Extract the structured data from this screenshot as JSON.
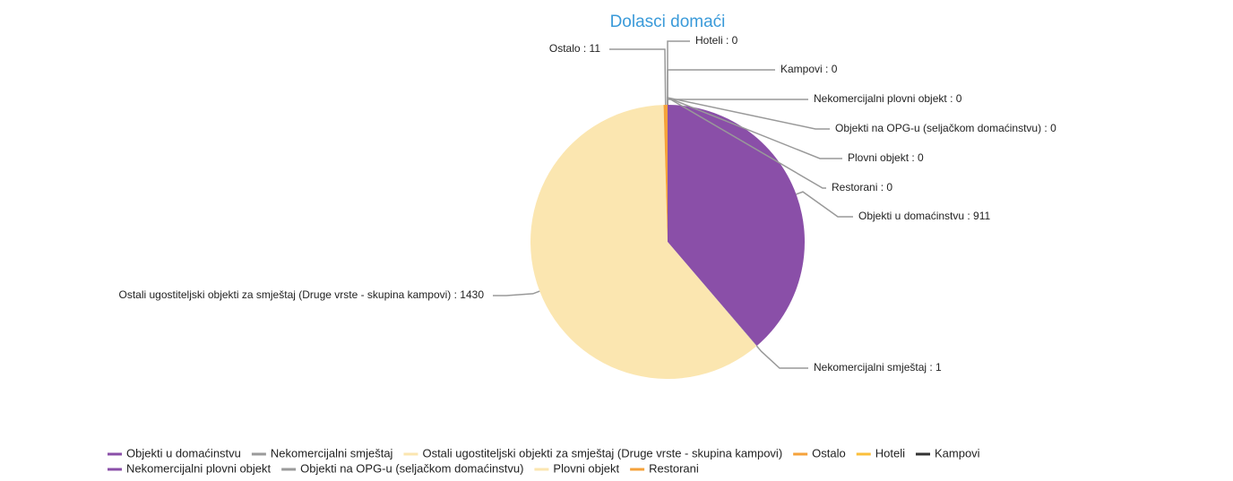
{
  "chart_data": {
    "type": "pie",
    "title": "Dolasci domaći",
    "categories": [
      "Objekti u domaćinstvu",
      "Nekomercijalni smještaj",
      "Ostali ugostiteljski objekti za smještaj (Druge vrste - skupina kampovi)",
      "Ostalo",
      "Hoteli",
      "Kampovi",
      "Nekomercijalni plovni objekt",
      "Objekti na OPG-u (seljačkom domaćinstvu)",
      "Plovni objekt",
      "Restorani"
    ],
    "values": [
      911,
      1,
      1430,
      11,
      0,
      0,
      0,
      0,
      0,
      0
    ],
    "value_labels": [
      "Objekti u domaćinstvu : 911",
      "Nekomercijalni smještaj : 1",
      "Ostali ugostiteljski objekti za smještaj (Druge vrste - skupina kampovi) : 1430",
      "Ostalo : 11",
      "Hoteli : 0",
      "Kampovi : 0",
      "Nekomercijalni plovni objekt : 0",
      "Objekti na OPG-u (seljačkom domaćinstvu) : 0",
      "Plovni objekt : 0",
      "Restorani : 0"
    ],
    "colors": [
      "#8a4fa8",
      "#9a9a9a",
      "#fbe6b0",
      "#f5a23a",
      "#fbbf3a",
      "#333333",
      "#8a4fa8",
      "#9a9a9a",
      "#fbe6b0",
      "#f5a23a"
    ],
    "legend": "bottom"
  }
}
